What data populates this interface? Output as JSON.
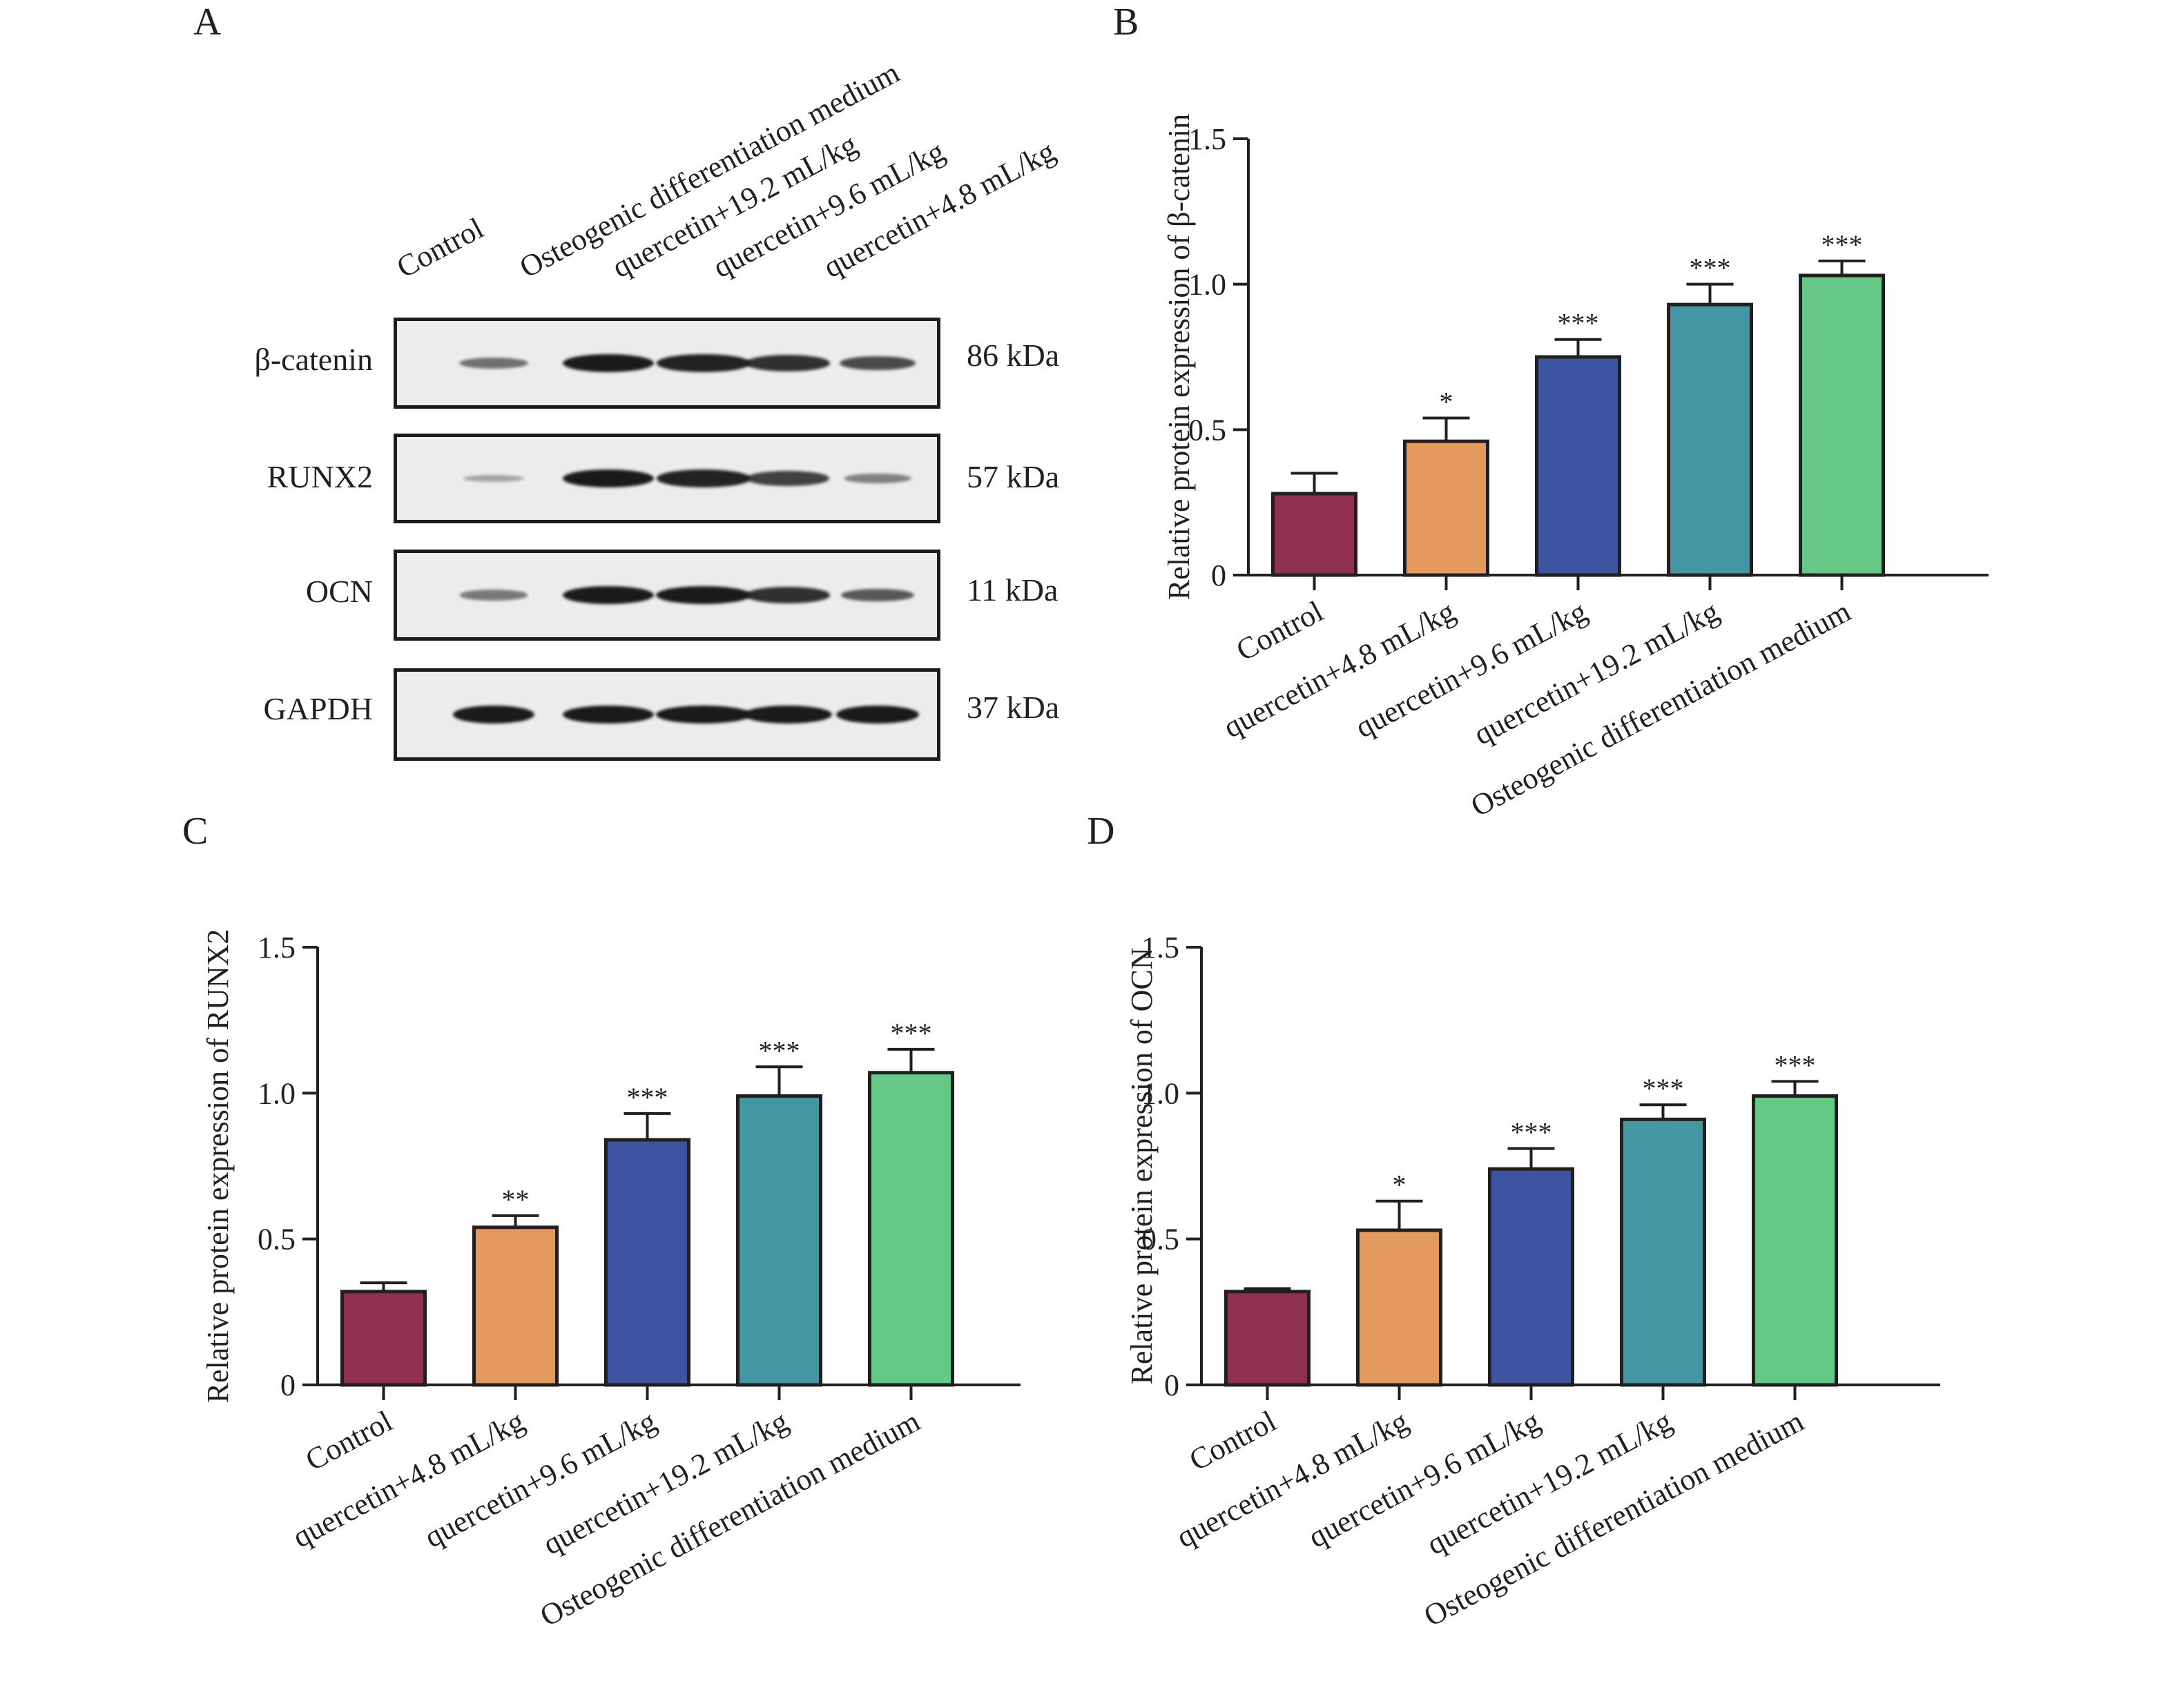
{
  "panels": {
    "A": "A",
    "B": "B",
    "C": "C",
    "D": "D"
  },
  "blot": {
    "lanes": [
      "Control",
      "Osteogenic differentiation medium",
      "quercetin+19.2 mL/kg",
      "quercetin+9.6 mL/kg",
      "quercetin+4.8 mL/kg"
    ],
    "rows": [
      {
        "protein": "β-catenin",
        "kda": "86 kDa",
        "intensity": [
          0.45,
          1.0,
          0.95,
          0.85,
          0.7
        ]
      },
      {
        "protein": "RUNX2",
        "kda": "57 kDa",
        "intensity": [
          0.12,
          1.0,
          0.95,
          0.75,
          0.35
        ]
      },
      {
        "protein": "OCN",
        "kda": "11 kDa",
        "intensity": [
          0.4,
          1.0,
          1.0,
          0.85,
          0.6
        ]
      },
      {
        "protein": "GAPDH",
        "kda": "37 kDa",
        "intensity": [
          1.0,
          1.0,
          1.0,
          1.0,
          1.0
        ]
      }
    ]
  },
  "colors": {
    "Control": "#8e3150",
    "quercetin+4.8 mL/kg": "#e39a5c",
    "quercetin+9.6 mL/kg": "#3d55a0",
    "quercetin+19.2 mL/kg": "#4596a4",
    "Osteogenic differentiation medium": "#66c886"
  },
  "chart_data": [
    {
      "panel": "B",
      "type": "bar",
      "categories": [
        "Control",
        "quercetin+4.8 mL/kg",
        "quercetin+9.6 mL/kg",
        "quercetin+19.2 mL/kg",
        "Osteogenic differentiation medium"
      ],
      "values": [
        0.28,
        0.46,
        0.75,
        0.93,
        1.03
      ],
      "error": [
        0.07,
        0.08,
        0.06,
        0.07,
        0.05
      ],
      "significance": [
        "",
        "*",
        "***",
        "***",
        "***"
      ],
      "ylabel": "Relative protein expression of β-catenin",
      "yticks": [
        "0",
        "0.5",
        "1.0",
        "1.5"
      ],
      "ylim": [
        0,
        1.5
      ]
    },
    {
      "panel": "C",
      "type": "bar",
      "categories": [
        "Control",
        "quercetin+4.8 mL/kg",
        "quercetin+9.6 mL/kg",
        "quercetin+19.2 mL/kg",
        "Osteogenic differentiation medium"
      ],
      "values": [
        0.32,
        0.54,
        0.84,
        0.99,
        1.07
      ],
      "error": [
        0.03,
        0.04,
        0.09,
        0.1,
        0.08
      ],
      "significance": [
        "",
        "**",
        "***",
        "***",
        "***"
      ],
      "ylabel": "Relative protein expression of RUNX2",
      "yticks": [
        "0",
        "0.5",
        "1.0",
        "1.5"
      ],
      "ylim": [
        0,
        1.5
      ]
    },
    {
      "panel": "D",
      "type": "bar",
      "categories": [
        "Control",
        "quercetin+4.8 mL/kg",
        "quercetin+9.6 mL/kg",
        "quercetin+19.2 mL/kg",
        "Osteogenic differentiation medium"
      ],
      "values": [
        0.32,
        0.53,
        0.74,
        0.91,
        0.99
      ],
      "error": [
        0.01,
        0.1,
        0.07,
        0.05,
        0.05
      ],
      "significance": [
        "",
        "*",
        "***",
        "***",
        "***"
      ],
      "ylabel": "Relative protein expression of OCN",
      "yticks": [
        "0",
        "0.5",
        "1.0",
        "1.5"
      ],
      "ylim": [
        0,
        1.5
      ]
    }
  ]
}
